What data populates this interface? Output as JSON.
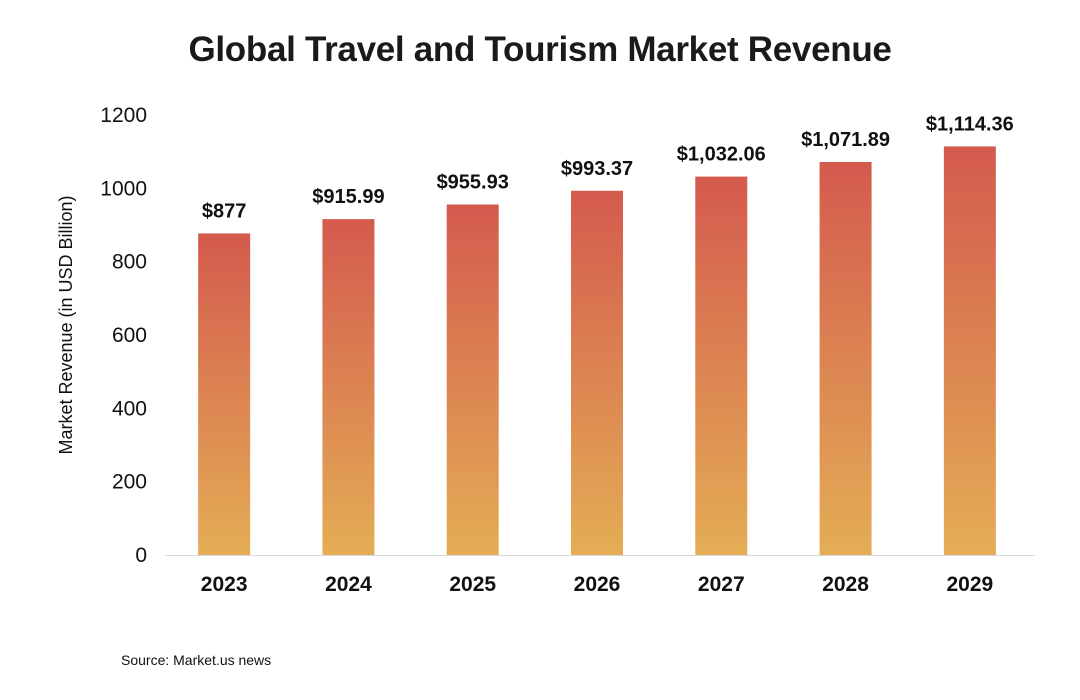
{
  "colors": {
    "bar_top": "#d45a4e",
    "bar_bottom": "#e4ad55",
    "baseline": "#d9d9d9",
    "text": "#111111"
  },
  "chart_data": {
    "type": "bar",
    "title": "Global Travel and Tourism Market Revenue",
    "source": "Source: Market.us news",
    "ylabel": "Market Revenue (in USD Billion)",
    "xlabel": "",
    "ylim": [
      0,
      1200
    ],
    "yticks": [
      0,
      200,
      400,
      600,
      800,
      1000,
      1200
    ],
    "grid": false,
    "categories": [
      "2023",
      "2024",
      "2025",
      "2026",
      "2027",
      "2028",
      "2029"
    ],
    "values": [
      877,
      915.99,
      955.93,
      993.37,
      1032.06,
      1071.89,
      1114.36
    ],
    "data_labels": [
      "$877",
      "$915.99",
      "$955.93",
      "$993.37",
      "$1,032.06",
      "$1,071.89",
      "$1,114.36"
    ]
  }
}
